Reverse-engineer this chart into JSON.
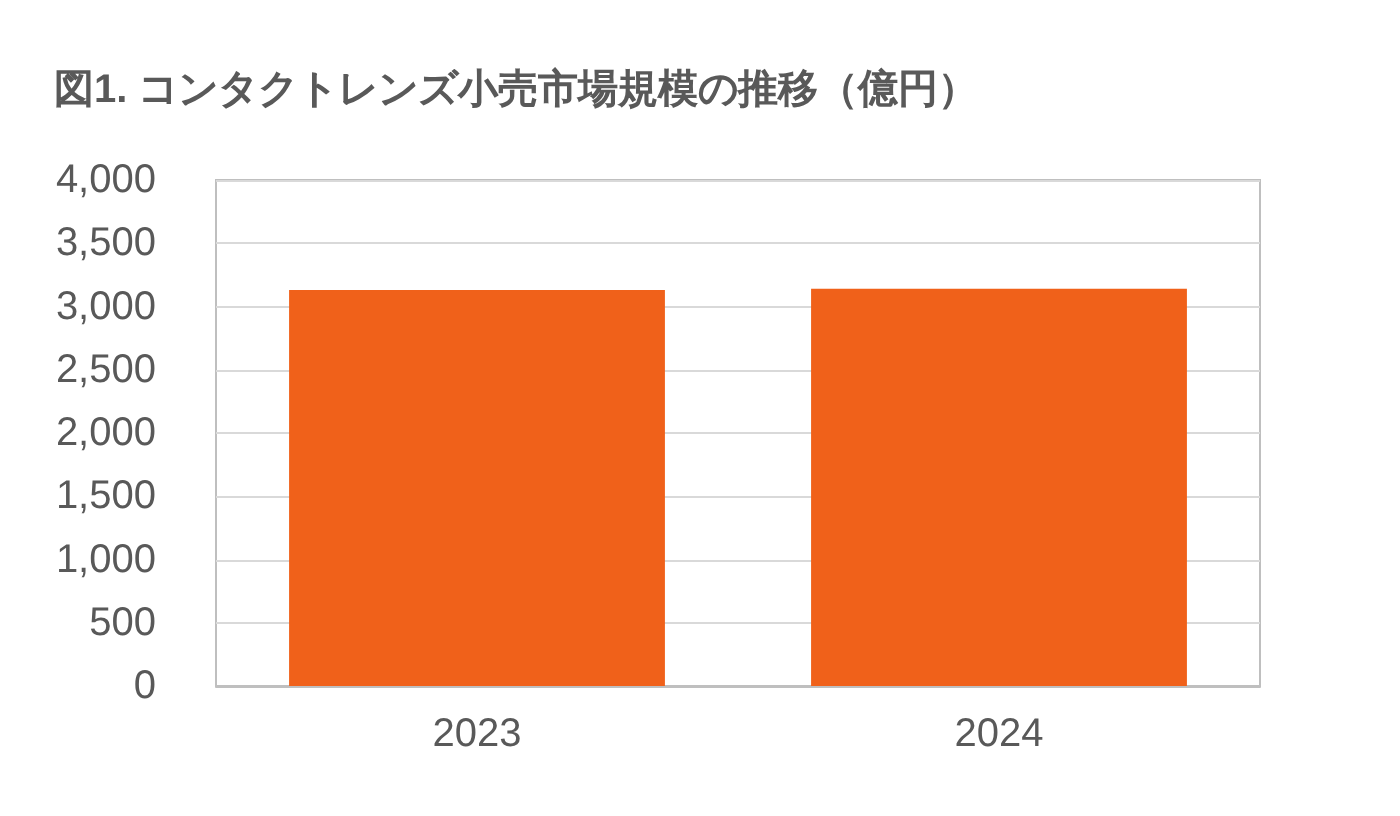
{
  "chart_data": {
    "type": "bar",
    "title": "図1. コンタクトレンズ小売市場規模の推移（億円）",
    "categories": [
      "2023",
      "2024"
    ],
    "values": [
      3130,
      3140
    ],
    "color": "#f0611a",
    "ylim": [
      0,
      4000
    ],
    "yticks": [
      0,
      500,
      {
        "value": 1000,
        "label": "1,000"
      },
      {
        "value": 1500,
        "label": "1,500"
      },
      {
        "value": 2000,
        "label": "2,000"
      },
      {
        "value": 2500,
        "label": "2,500"
      },
      {
        "value": 3000,
        "label": "3,000"
      },
      {
        "value": 3500,
        "label": "3,500"
      },
      {
        "value": 4000,
        "label": "4,000"
      }
    ],
    "grid": "y"
  }
}
